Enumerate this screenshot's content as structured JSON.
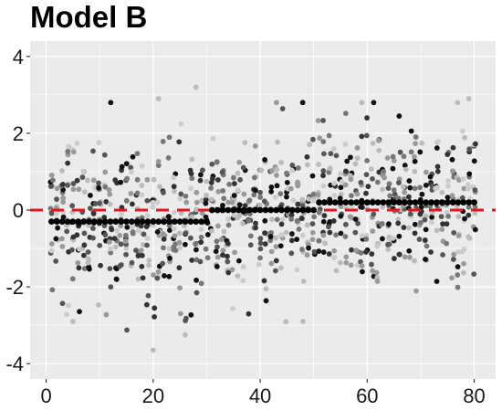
{
  "chart_data": {
    "type": "scatter",
    "title": "Model B",
    "xlabel": "",
    "ylabel": "",
    "xlim": [
      -3,
      84
    ],
    "ylim": [
      -4.4,
      4.4
    ],
    "x_ticks": [
      0,
      20,
      40,
      60,
      80
    ],
    "y_ticks": [
      -4,
      -2,
      0,
      2,
      4
    ],
    "grid": true,
    "background": "#ebebeb",
    "grid_color": "#ffffff",
    "reference_line": {
      "y": 0,
      "style": "dashed",
      "color": "#e8141c"
    },
    "step_series": {
      "name": "",
      "color": "#000000",
      "segments": [
        {
          "x_from": 1,
          "x_to": 30,
          "y": -0.3
        },
        {
          "x_from": 31,
          "x_to": 50,
          "y": 0.0
        },
        {
          "x_from": 51,
          "x_to": 80,
          "y": 0.2
        }
      ]
    },
    "noise_points": {
      "description_of_spread": "about 12 grey observations per x position, roughly within -3.5 to 3.2",
      "per_x_count": 12,
      "approx_sd": 1.0,
      "greys": [
        "#111111",
        "#333333",
        "#555555",
        "#777777",
        "#999999",
        "#bbbbbb",
        "#cccccc"
      ]
    },
    "outliers": [
      {
        "x": 20,
        "y": -3.65
      },
      {
        "x": 21,
        "y": 2.9
      },
      {
        "x": 28,
        "y": 3.2
      },
      {
        "x": 79,
        "y": 2.9
      },
      {
        "x": 59,
        "y": 2.8
      },
      {
        "x": 5,
        "y": -2.9
      },
      {
        "x": 48,
        "y": -2.9
      },
      {
        "x": 26,
        "y": -3.25
      }
    ]
  }
}
